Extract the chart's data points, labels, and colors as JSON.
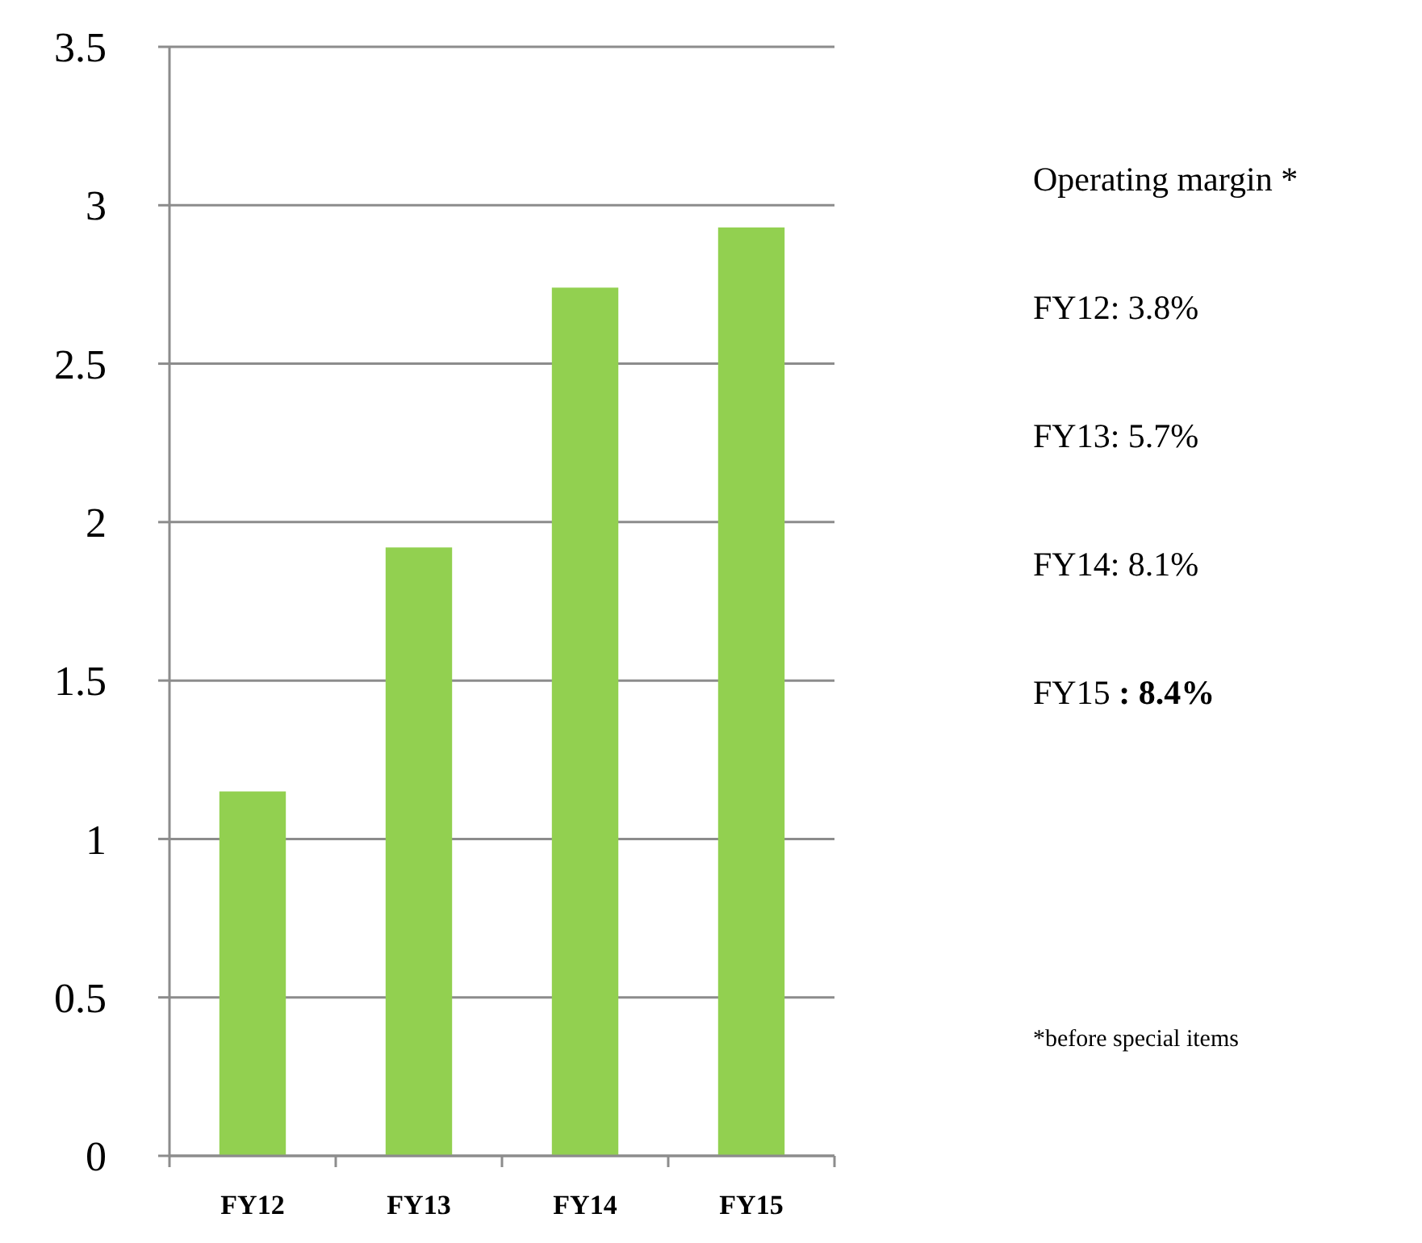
{
  "chart_data": {
    "type": "bar",
    "categories": [
      "FY12",
      "FY13",
      "FY14",
      "FY15"
    ],
    "values": [
      1.15,
      1.92,
      2.74,
      2.93
    ],
    "color": "#92d050",
    "ylim": [
      0,
      3.5
    ],
    "yticks": [
      0,
      0.5,
      1,
      1.5,
      2,
      2.5,
      3,
      3.5
    ],
    "grid": "y",
    "annotations": [
      "Operating margin *",
      "FY12: 3.8%",
      "FY13: 5.7%",
      "FY14: 8.1%",
      "FY15 : 8.4%",
      "*before special items"
    ]
  }
}
